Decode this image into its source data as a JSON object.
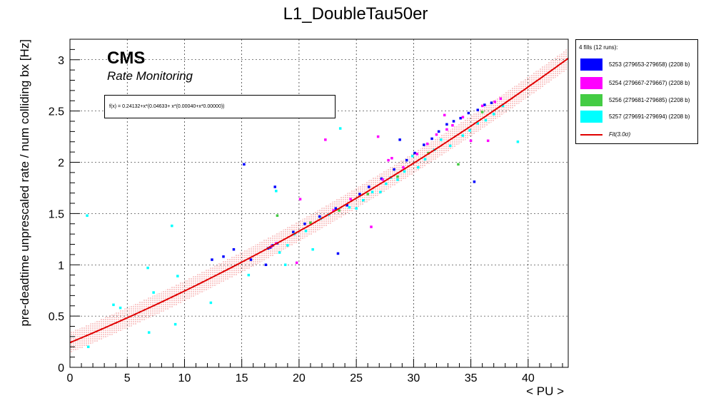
{
  "title": "L1_DoubleTau50er",
  "xlabel": "< PU >",
  "ylabel": "pre-deadtime unprescaled rate / num colliding bx [Hz]",
  "cms_label": "CMS",
  "subtitle": "Rate Monitoring",
  "fit_formula": "f(x) = 0.24132+x*(0.04633+ x*(0.00040+x*0.00000))",
  "legend": {
    "header": "4 fills (12 runs):",
    "entries": [
      {
        "label": "5253 (279653-279658) (2208 b)",
        "color": "#0000ff"
      },
      {
        "label": "5254 (279667-279667) (2208 b)",
        "color": "#ff00ff"
      },
      {
        "label": "5256 (279681-279685) (2208 b)",
        "color": "#44cc44"
      },
      {
        "label": "5257 (279691-279694) (2208 b)",
        "color": "#00ffff"
      }
    ],
    "fit_label": "Fit(3.0σ)",
    "fit_color": "#e00000"
  },
  "chart_data": {
    "type": "scatter",
    "title": "L1_DoubleTau50er",
    "xlabel": "< PU >",
    "ylabel": "pre-deadtime unprescaled rate / num colliding bx [Hz]",
    "xlim": [
      0,
      43.5
    ],
    "ylim": [
      0,
      3.2
    ],
    "xticks": [
      0,
      5,
      10,
      15,
      20,
      25,
      30,
      35,
      40
    ],
    "yticks": [
      0,
      0.5,
      1,
      1.5,
      2,
      2.5,
      3
    ],
    "grid": true,
    "legend_position": "outside-right",
    "fit": {
      "a0": 0.24132,
      "a1": 0.04633,
      "a2": 0.0004,
      "a3": 0.0,
      "sigma_band": 0.1,
      "x_range": [
        0,
        43.5
      ]
    },
    "series": [
      {
        "name": "5253 (279653-279658) (2208 b)",
        "color": "#0000ff",
        "x": [
          12.4,
          13.4,
          14.3,
          15.2,
          15.8,
          17.1,
          17.3,
          17.5,
          17.7,
          17.9,
          18.1,
          19.5,
          20.5,
          21.8,
          23.2,
          23.4,
          24.2,
          25.3,
          26.1,
          27.2,
          28.3,
          28.8,
          29.4,
          30.1,
          30.9,
          31.6,
          32.2,
          32.9,
          33.5,
          34.1,
          34.8,
          35.3,
          35.6,
          36.2,
          36.8
        ],
        "y": [
          1.05,
          1.08,
          1.15,
          1.98,
          1.05,
          1.0,
          1.16,
          1.17,
          1.19,
          1.76,
          1.21,
          1.32,
          1.4,
          1.47,
          1.55,
          1.11,
          1.58,
          1.69,
          1.76,
          1.84,
          1.93,
          2.22,
          2.02,
          2.09,
          2.17,
          2.23,
          2.3,
          2.37,
          2.4,
          2.43,
          2.48,
          1.81,
          2.51,
          2.56,
          2.58
        ]
      },
      {
        "name": "5254 (279667-279667) (2208 b)",
        "color": "#ff00ff",
        "x": [
          17.6,
          18.0,
          19.8,
          20.1,
          22.3,
          23.0,
          24.5,
          26.3,
          26.9,
          27.3,
          27.8,
          28.1,
          29.1,
          30.3,
          31.2,
          32.0,
          32.7,
          32.9,
          33.4,
          34.3,
          35.0,
          36.0,
          36.5,
          37.1,
          37.6
        ],
        "y": [
          1.18,
          1.21,
          1.02,
          1.64,
          2.22,
          1.53,
          1.64,
          1.37,
          2.25,
          1.83,
          2.02,
          2.04,
          1.95,
          2.08,
          2.18,
          2.27,
          2.46,
          2.32,
          2.36,
          2.44,
          2.21,
          2.55,
          2.21,
          2.59,
          2.62
        ]
      },
      {
        "name": "5256 (279681-279685) (2208 b)",
        "color": "#44cc44",
        "x": [
          18.1,
          21.0,
          23.5,
          26.0,
          28.6,
          31.3,
          33.9,
          36.0
        ],
        "y": [
          1.48,
          1.41,
          1.53,
          1.69,
          1.86,
          2.09,
          1.98,
          2.49
        ]
      },
      {
        "name": "5257 (279691-279694) (2208 b)",
        "color": "#00ffff",
        "x": [
          1.5,
          1.6,
          3.8,
          4.4,
          6.8,
          6.9,
          7.3,
          8.9,
          9.2,
          9.4,
          12.3,
          15.6,
          18.0,
          18.3,
          18.8,
          19.0,
          19.6,
          20.6,
          21.2,
          21.9,
          22.6,
          23.6,
          24.4,
          25.0,
          25.6,
          26.4,
          27.1,
          27.6,
          28.0,
          28.6,
          29.2,
          29.9,
          30.4,
          31.0,
          31.8,
          32.4,
          33.2,
          34.3,
          34.9,
          35.6,
          36.3,
          37.0,
          37.8,
          39.1
        ],
        "y": [
          1.48,
          0.2,
          0.61,
          0.58,
          0.97,
          0.34,
          0.73,
          1.38,
          0.42,
          0.89,
          0.63,
          0.9,
          1.72,
          1.12,
          1.0,
          1.19,
          1.3,
          1.33,
          1.15,
          1.45,
          1.49,
          2.33,
          1.56,
          1.55,
          1.63,
          1.71,
          1.71,
          1.79,
          1.85,
          1.83,
          1.91,
          2.06,
          1.95,
          2.03,
          2.12,
          2.22,
          2.16,
          2.26,
          2.31,
          2.38,
          2.41,
          2.47,
          2.55,
          2.2
        ]
      }
    ]
  }
}
